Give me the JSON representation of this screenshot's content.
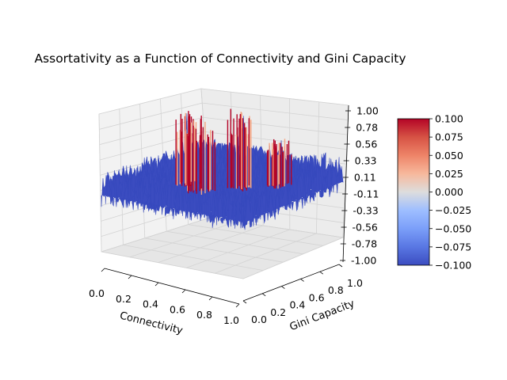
{
  "chart_data": {
    "type": "surface",
    "title": "Assortativity as a Function of Connectivity and Gini Capacity",
    "xlabel": "Connectivity",
    "ylabel": "Gini Capacity",
    "zlabel": "",
    "xlim": [
      0.0,
      1.0
    ],
    "ylim": [
      0.0,
      1.0
    ],
    "zlim": [
      -1.0,
      1.0
    ],
    "x_ticks": [
      "0.0",
      "0.2",
      "0.4",
      "0.6",
      "0.8",
      "1.0"
    ],
    "y_ticks": [
      "0.0",
      "0.2",
      "0.4",
      "0.6",
      "0.8",
      "1.0"
    ],
    "z_ticks": [
      "-1.00",
      "-0.78",
      "-0.56",
      "-0.33",
      "-0.11",
      "0.11",
      "0.33",
      "0.56",
      "0.78",
      "1.00"
    ],
    "grid": true,
    "colormap": "coolwarm",
    "colorbar": {
      "min": -0.1,
      "max": 0.1,
      "ticks": [
        "0.100",
        "0.075",
        "0.050",
        "0.025",
        "0.000",
        "−0.025",
        "−0.050",
        "−0.075",
        "−0.100"
      ],
      "low_color": "#3b4cc0",
      "mid_color": "#dddddd",
      "high_color": "#b40426"
    },
    "surface_summary": {
      "baseline_z": [
        -0.3,
        0.0
      ],
      "noise": "high-frequency fluctuations across the whole grid",
      "peaks": [
        {
          "x": 0.55,
          "y": 0.2,
          "z": 0.9
        },
        {
          "x": 0.4,
          "y": 0.3,
          "z": 0.85
        },
        {
          "x": 0.7,
          "y": 0.4,
          "z": 1.0
        },
        {
          "x": 0.85,
          "y": 0.55,
          "z": 0.5
        }
      ]
    }
  }
}
